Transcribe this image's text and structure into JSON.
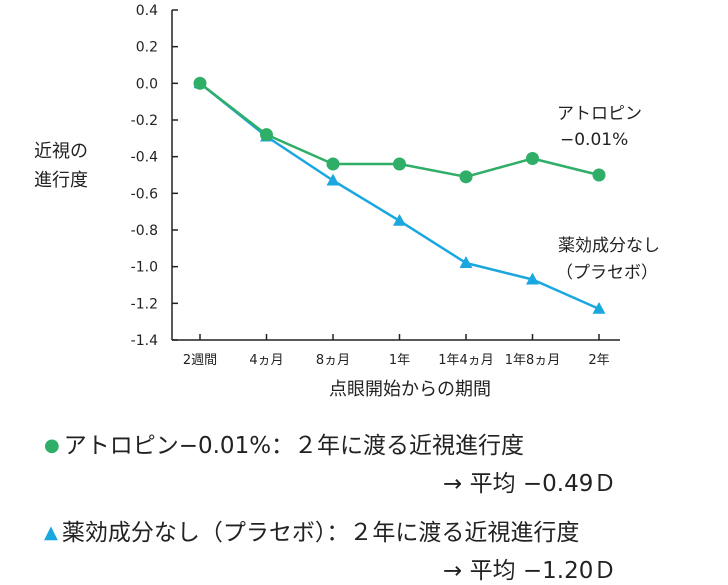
{
  "chart_data": {
    "type": "line",
    "ylabel_lines": [
      "近視の",
      "進行度"
    ],
    "xlabel": "点眼開始からの期間",
    "categories": [
      "2週間",
      "4ヵ月",
      "8ヵ月",
      "1年",
      "1年4ヵ月",
      "1年8ヵ月",
      "2年"
    ],
    "ylim": [
      -1.4,
      0.4
    ],
    "yticks": [
      "0.4",
      "0.2",
      "0.0",
      "-0.2",
      "-0.4",
      "-0.6",
      "-0.8",
      "-1.0",
      "-1.2",
      "-1.4"
    ],
    "grid": false,
    "series": [
      {
        "key": "atropine",
        "label_lines": [
          "アトロピン",
          "−0.01%"
        ],
        "marker": "circle",
        "color": "#2eae66",
        "values": [
          0.0,
          -0.28,
          -0.44,
          -0.44,
          -0.51,
          -0.41,
          -0.5
        ]
      },
      {
        "key": "placebo",
        "label_lines": [
          "薬効成分なし",
          "（プラセボ）"
        ],
        "marker": "triangle",
        "color": "#1aa7e0",
        "values": [
          0.0,
          -0.29,
          -0.53,
          -0.75,
          -0.98,
          -1.07,
          -1.23
        ]
      }
    ]
  },
  "notes": [
    {
      "marker": "●",
      "marker_color": "#2eae66",
      "text": "アトロピン−0.01%：２年に渡る近視進行度",
      "sub": "→ 平均 −0.49Ｄ"
    },
    {
      "marker": "▲",
      "marker_color": "#1aa7e0",
      "text": "薬効成分なし（プラセボ）：２年に渡る近視進行度",
      "sub": "→ 平均 −1.20Ｄ"
    }
  ]
}
